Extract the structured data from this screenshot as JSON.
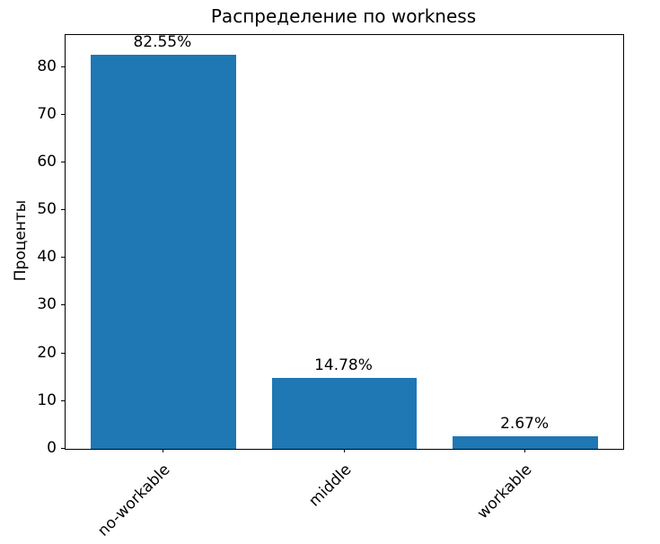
{
  "chart_data": {
    "type": "bar",
    "title": "Распределение по workness",
    "xlabel": "",
    "ylabel": "Проценты",
    "categories": [
      "no-workable",
      "middle",
      "workable"
    ],
    "values": [
      82.55,
      14.78,
      2.67
    ],
    "value_labels": [
      "82.55%",
      "14.78%",
      "2.67%"
    ],
    "bar_color": "#1f77b4",
    "ylim": [
      0,
      86.7
    ],
    "yticks": [
      0,
      10,
      20,
      30,
      40,
      50,
      60,
      70,
      80
    ],
    "grid": false,
    "legend_position": "none",
    "x_tick_rotation": 45
  }
}
